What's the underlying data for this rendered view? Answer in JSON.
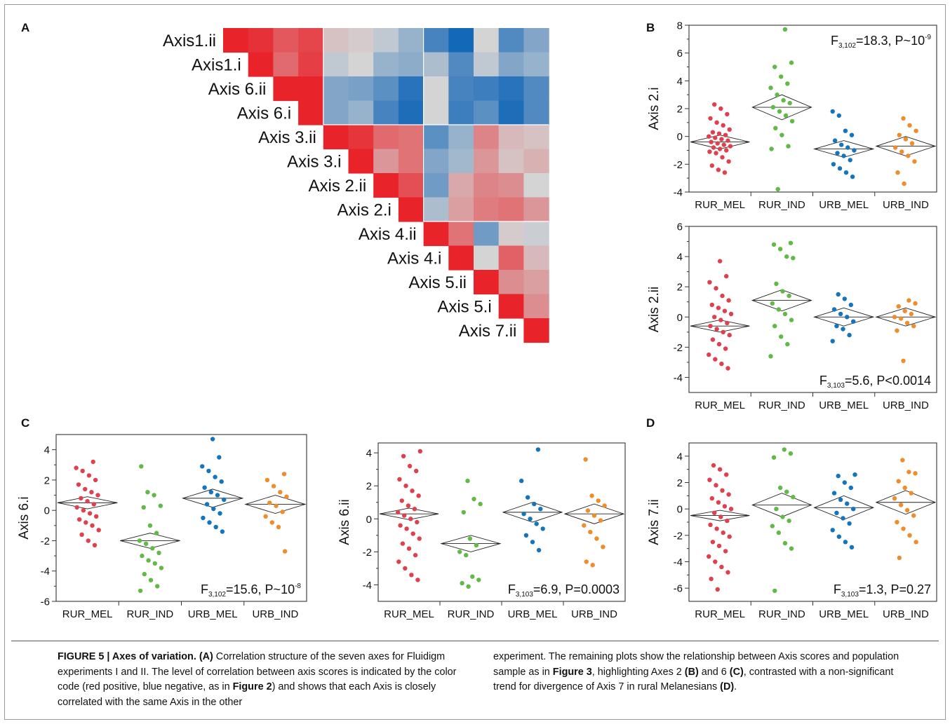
{
  "figure": {
    "panel_letters": [
      "A",
      "B",
      "C",
      "D"
    ],
    "caption": {
      "prefix": "FIGURE 5 | Axes of variation.",
      "parts_left": [
        {
          "b": "(A)"
        },
        {
          "t": " Correlation structure of the seven axes for Fluidigm experiments I and II. The level of correlation between axis scores is indicated by the color code (red positive, blue negative, as in "
        },
        {
          "b": "Figure 2"
        },
        {
          "t": ") and shows that each Axis is closely correlated with the same Axis in the other"
        }
      ],
      "parts_right": [
        {
          "t": "experiment. The remaining plots show the relationship between Axis scores and population sample as in "
        },
        {
          "b": "Figure 3"
        },
        {
          "t": ", highlighting Axes 2 "
        },
        {
          "b": "(B)"
        },
        {
          "t": " and 6 "
        },
        {
          "b": "(C)"
        },
        {
          "t": ", contrasted with a non-significant trend for divergence of Axis 7 in rural Melanesians "
        },
        {
          "b": "(D)"
        },
        {
          "t": "."
        }
      ]
    }
  },
  "chart_data": [
    {
      "panel": "A",
      "type": "heatmap",
      "title": "",
      "row_labels": [
        "Axis1.ii",
        "Axis1.i",
        "Axis 6.ii",
        "Axis 6.i",
        "Axis 3.ii",
        "Axis 3.i",
        "Axis 2.ii",
        "Axis 2.i",
        "Axis 4.ii",
        "Axis 4.i",
        "Axis 5.ii",
        "Axis 5.i",
        "Axis 7.ii"
      ],
      "color_scale": {
        "positive": "#e8232a",
        "neutral": "#d4d4d4",
        "negative": "#0a62b6"
      },
      "matrix_upper_triangle": [
        [
          1.0,
          0.92,
          0.7,
          0.8,
          0.1,
          0.05,
          -0.1,
          -0.3,
          -0.7,
          -0.95,
          0.0,
          -0.65,
          -0.4
        ],
        [
          1.0,
          0.6,
          0.85,
          -0.1,
          0.0,
          -0.3,
          -0.35,
          -0.2,
          -0.65,
          -0.1,
          -0.4,
          -0.3
        ],
        [
          1.0,
          1.0,
          -0.4,
          -0.45,
          -0.6,
          -0.85,
          0.0,
          -0.7,
          -0.75,
          -0.85,
          -0.65
        ],
        [
          1.0,
          -0.4,
          -0.3,
          -0.7,
          -0.9,
          0.0,
          -0.75,
          -0.6,
          -0.9,
          -0.65
        ],
        [
          1.0,
          0.9,
          0.6,
          0.55,
          -0.6,
          -0.3,
          0.45,
          0.15,
          0.1
        ],
        [
          1.0,
          0.35,
          0.55,
          -0.4,
          -0.25,
          0.35,
          0.1,
          0.2
        ],
        [
          1.0,
          0.75,
          -0.5,
          0.25,
          0.45,
          0.4,
          0.0
        ],
        [
          1.0,
          -0.2,
          0.3,
          0.5,
          0.55,
          0.35
        ],
        [
          1.0,
          0.55,
          -0.5,
          0.05,
          -0.05
        ],
        [
          1.0,
          0.0,
          0.65,
          0.15
        ],
        [
          1.0,
          0.4,
          0.3
        ],
        [
          1.0,
          0.4
        ],
        [
          1.0
        ]
      ]
    },
    {
      "panel": "B",
      "type": "scatter",
      "ylabel": "Axis 2.i",
      "categories": [
        "RUR_MEL",
        "RUR_IND",
        "URB_MEL",
        "URB_IND"
      ],
      "ylim": [
        -4,
        8
      ],
      "yticks": [
        -4,
        -2,
        0,
        2,
        4,
        6,
        8
      ],
      "annotation": {
        "F": "F",
        "sub": "3,102",
        "text": "=18.3, P~10",
        "sup": "-9",
        "position": "top-right"
      },
      "colors": [
        "#e0404e",
        "#5fba46",
        "#1475bf",
        "#ef8c2c"
      ],
      "means": [
        -0.4,
        2.1,
        -0.9,
        -0.7
      ],
      "diamond_half_heights": [
        0.5,
        0.9,
        0.6,
        0.7
      ],
      "series": [
        {
          "name": "RUR_MEL",
          "values": [
            2.3,
            2.0,
            1.6,
            1.3,
            1.0,
            0.8,
            0.5,
            0.3,
            0.2,
            0.1,
            0.0,
            -0.1,
            -0.2,
            -0.3,
            -0.4,
            -0.5,
            -0.6,
            -0.7,
            -0.8,
            -0.9,
            -1.0,
            -1.1,
            -1.2,
            -1.5,
            -1.8,
            -2.1,
            -2.4,
            -2.6
          ]
        },
        {
          "name": "RUR_IND",
          "values": [
            7.7,
            5.3,
            5.0,
            4.3,
            3.8,
            3.5,
            3.0,
            2.6,
            2.4,
            2.1,
            1.8,
            1.5,
            1.1,
            0.6,
            0.1,
            -0.7,
            -0.9,
            -3.8
          ]
        },
        {
          "name": "URB_MEL",
          "values": [
            1.8,
            1.5,
            0.4,
            0.1,
            -0.3,
            -0.6,
            -0.8,
            -1.0,
            -1.2,
            -1.4,
            -1.7,
            -2.0,
            -2.3,
            -2.6,
            -2.9
          ]
        },
        {
          "name": "URB_IND",
          "values": [
            1.3,
            0.8,
            0.4,
            0.1,
            -0.2,
            -0.5,
            -0.8,
            -1.1,
            -1.4,
            -1.8,
            -2.6,
            -3.4
          ]
        }
      ]
    },
    {
      "panel": "B",
      "type": "scatter",
      "ylabel": "Axis 2.ii",
      "categories": [
        "RUR_MEL",
        "RUR_IND",
        "URB_MEL",
        "URB_IND"
      ],
      "ylim": [
        -5,
        6
      ],
      "yticks": [
        -4,
        -2,
        0,
        2,
        4,
        6
      ],
      "annotation": {
        "F": "F",
        "sub": "3,103",
        "text": "=5.6, P<0.0014",
        "sup": "",
        "position": "bottom-right"
      },
      "colors": [
        "#e0404e",
        "#5fba46",
        "#1475bf",
        "#ef8c2c"
      ],
      "means": [
        -0.6,
        1.1,
        0.0,
        0.0
      ],
      "diamond_half_heights": [
        0.4,
        0.7,
        0.6,
        0.6
      ],
      "series": [
        {
          "name": "RUR_MEL",
          "values": [
            3.7,
            2.7,
            2.3,
            1.9,
            1.4,
            1.1,
            0.8,
            0.6,
            0.4,
            0.2,
            0.0,
            -0.2,
            -0.4,
            -0.6,
            -0.8,
            -1.0,
            -1.2,
            -1.5,
            -1.8,
            -2.1,
            -2.5,
            -2.8,
            -3.1,
            -3.4
          ]
        },
        {
          "name": "RUR_IND",
          "values": [
            4.9,
            4.8,
            4.5,
            4.0,
            3.9,
            2.2,
            1.7,
            1.4,
            0.9,
            0.5,
            0.2,
            -0.2,
            -0.6,
            -1.3,
            -1.8,
            -2.6
          ]
        },
        {
          "name": "URB_MEL",
          "values": [
            1.5,
            1.2,
            0.8,
            0.5,
            0.2,
            0.0,
            -0.3,
            -0.6,
            -0.8,
            -1.2,
            -1.6
          ]
        },
        {
          "name": "URB_IND",
          "values": [
            1.1,
            0.9,
            0.7,
            0.4,
            0.2,
            0.0,
            -0.1,
            -0.4,
            -0.6,
            -0.9,
            -2.9
          ]
        }
      ]
    },
    {
      "panel": "C",
      "type": "scatter",
      "ylabel": "Axis 6.i",
      "categories": [
        "RUR_MEL",
        "RUR_IND",
        "URB_MEL",
        "URB_IND"
      ],
      "ylim": [
        -6,
        5
      ],
      "yticks": [
        -6,
        -4,
        -2,
        0,
        2,
        4
      ],
      "annotation": {
        "F": "F",
        "sub": "3,102",
        "text": "=15.6, P~10",
        "sup": "-8",
        "position": "bottom-right"
      },
      "colors": [
        "#e0404e",
        "#5fba46",
        "#1475bf",
        "#ef8c2c"
      ],
      "means": [
        0.5,
        -2.0,
        0.8,
        0.4
      ],
      "diamond_half_heights": [
        0.4,
        0.5,
        0.6,
        0.6
      ],
      "series": [
        {
          "name": "RUR_MEL",
          "values": [
            3.2,
            2.8,
            2.6,
            2.3,
            2.0,
            1.7,
            1.4,
            1.2,
            1.0,
            0.8,
            0.6,
            0.4,
            0.2,
            0.0,
            -0.2,
            -0.4,
            -0.6,
            -0.8,
            -1.0,
            -1.3,
            -1.6,
            -2.0,
            -2.3
          ]
        },
        {
          "name": "RUR_IND",
          "values": [
            2.9,
            1.2,
            1.0,
            0.3,
            0.2,
            -1.0,
            -1.5,
            -2.0,
            -2.2,
            -2.5,
            -2.8,
            -3.0,
            -3.3,
            -3.5,
            -3.8,
            -4.2,
            -4.6,
            -5.0,
            -5.3
          ]
        },
        {
          "name": "URB_MEL",
          "values": [
            4.7,
            3.5,
            2.9,
            2.6,
            2.2,
            1.9,
            1.5,
            1.2,
            1.0,
            0.7,
            0.4,
            0.1,
            -0.2,
            -0.5,
            -0.8,
            -1.1,
            -1.4
          ]
        },
        {
          "name": "URB_IND",
          "values": [
            2.4,
            2.0,
            1.6,
            1.2,
            0.9,
            0.5,
            0.3,
            -0.1,
            -0.4,
            -0.8,
            -1.1,
            -2.7
          ]
        }
      ]
    },
    {
      "panel": "C",
      "type": "scatter",
      "ylabel": "Axis 6.ii",
      "categories": [
        "RUR_MEL",
        "RUR_IND",
        "URB_MEL",
        "URB_IND"
      ],
      "ylim": [
        -5,
        4.6
      ],
      "yticks": [
        -4,
        -2,
        0,
        2,
        4
      ],
      "annotation": {
        "F": "F",
        "sub": "3,103",
        "text": "=6.9, P=0.0003",
        "sup": "",
        "position": "bottom-right"
      },
      "colors": [
        "#e0404e",
        "#5fba46",
        "#1475bf",
        "#ef8c2c"
      ],
      "means": [
        0.3,
        -1.5,
        0.4,
        0.3
      ],
      "diamond_half_heights": [
        0.35,
        0.5,
        0.6,
        0.6
      ],
      "series": [
        {
          "name": "RUR_MEL",
          "values": [
            4.1,
            3.8,
            3.2,
            2.9,
            2.4,
            2.0,
            1.7,
            1.4,
            1.1,
            0.8,
            0.6,
            0.4,
            0.2,
            0.0,
            -0.2,
            -0.4,
            -0.6,
            -0.9,
            -1.2,
            -1.5,
            -1.8,
            -2.2,
            -2.6,
            -3.0,
            -3.4,
            -3.7
          ]
        },
        {
          "name": "RUR_IND",
          "values": [
            2.3,
            1.2,
            0.9,
            0.4,
            -1.2,
            -1.6,
            -2.0,
            -2.2,
            -3.5,
            -3.7,
            -3.9,
            -4.1
          ]
        },
        {
          "name": "URB_MEL",
          "values": [
            4.2,
            2.3,
            1.3,
            0.9,
            0.6,
            0.3,
            0.0,
            -0.3,
            -0.6,
            -1.0,
            -1.4,
            -1.9
          ]
        },
        {
          "name": "URB_IND",
          "values": [
            3.6,
            1.4,
            1.1,
            0.8,
            0.5,
            0.2,
            -0.1,
            -0.4,
            -0.8,
            -1.2,
            -1.7,
            -2.6,
            -2.8
          ]
        }
      ]
    },
    {
      "panel": "D",
      "type": "scatter",
      "ylabel": "Axis 7.ii",
      "categories": [
        "RUR_MEL",
        "RUR_IND",
        "URB_MEL",
        "URB_IND"
      ],
      "ylim": [
        -7,
        5
      ],
      "yticks": [
        -6,
        -4,
        -2,
        0,
        2,
        4
      ],
      "annotation": {
        "F": "F",
        "sub": "3,103",
        "text": "=1.3, P=0.27",
        "sup": "",
        "position": "bottom-right"
      },
      "colors": [
        "#e0404e",
        "#5fba46",
        "#1475bf",
        "#ef8c2c"
      ],
      "means": [
        -0.5,
        0.3,
        0.1,
        0.5
      ],
      "diamond_half_heights": [
        0.4,
        0.9,
        0.9,
        0.9
      ],
      "series": [
        {
          "name": "RUR_MEL",
          "values": [
            3.3,
            3.0,
            2.6,
            2.2,
            1.8,
            1.4,
            1.1,
            0.8,
            0.5,
            0.2,
            0.0,
            -0.3,
            -0.6,
            -0.9,
            -1.2,
            -1.5,
            -1.8,
            -2.1,
            -2.5,
            -2.8,
            -3.2,
            -3.6,
            -4.0,
            -4.4,
            -4.8,
            -5.3,
            -6.1
          ]
        },
        {
          "name": "RUR_IND",
          "values": [
            4.5,
            4.2,
            3.9,
            1.6,
            1.3,
            0.9,
            0.0,
            -0.6,
            -0.9,
            -1.3,
            -1.8,
            -2.6,
            -3.0,
            -6.2
          ]
        },
        {
          "name": "URB_MEL",
          "values": [
            2.6,
            2.5,
            2.0,
            1.6,
            1.2,
            0.7,
            0.4,
            0.0,
            -0.3,
            -0.7,
            -1.1,
            -1.6,
            -2.1,
            -2.5,
            -2.9
          ]
        },
        {
          "name": "URB_IND",
          "values": [
            3.7,
            2.8,
            2.7,
            2.1,
            1.6,
            1.2,
            0.8,
            0.3,
            -0.1,
            -0.5,
            -1.0,
            -1.5,
            -2.0,
            -2.5,
            -3.7
          ]
        }
      ]
    }
  ]
}
